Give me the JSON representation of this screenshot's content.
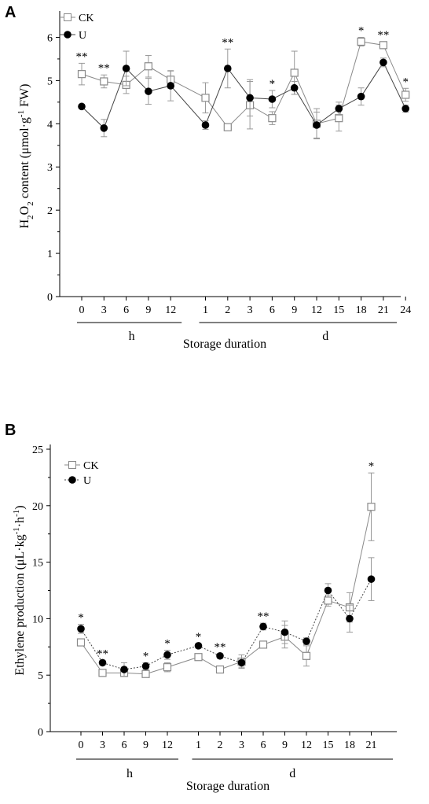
{
  "chart_data": [
    {
      "panel": "A",
      "type": "line",
      "ylabel_parts": [
        "H",
        "2",
        "O",
        "2",
        " content (μmol·g",
        "-1",
        " FW)"
      ],
      "xlabel": "Storage duration",
      "group_labels": [
        "h",
        "d"
      ],
      "categories": [
        "0",
        "3",
        "6",
        "9",
        "12",
        "1",
        "2",
        "3",
        "6",
        "9",
        "12",
        "15",
        "18",
        "21",
        "24"
      ],
      "ylim": [
        0,
        6.5
      ],
      "yticks": [
        0,
        1,
        2,
        3,
        4,
        5,
        6
      ],
      "series": [
        {
          "name": "CK",
          "marker": "square",
          "values": [
            5.15,
            4.98,
            4.9,
            5.33,
            5.02,
            4.6,
            3.92,
            4.43,
            4.13,
            5.18,
            4.0,
            4.13,
            5.9,
            5.82,
            4.67
          ],
          "errors": [
            0.25,
            0.15,
            0.2,
            0.25,
            0.2,
            0.35,
            0.05,
            0.55,
            0.15,
            0.5,
            0.35,
            0.3,
            0.1,
            0.08,
            0.15
          ]
        },
        {
          "name": "U",
          "marker": "circle",
          "values": [
            4.4,
            3.9,
            5.28,
            4.75,
            4.88,
            3.97,
            5.28,
            4.6,
            4.57,
            4.83,
            3.97,
            4.35,
            4.63,
            5.42,
            4.35
          ],
          "errors": [
            0.05,
            0.2,
            0.4,
            0.3,
            0.35,
            0.1,
            0.45,
            0.42,
            0.2,
            0.15,
            0.3,
            0.15,
            0.2,
            0.1,
            0.08
          ]
        }
      ],
      "significance": [
        "**",
        "**",
        "",
        "",
        "",
        "",
        "**",
        "",
        "*",
        "",
        "",
        "",
        "*",
        "**",
        "*"
      ]
    },
    {
      "panel": "B",
      "type": "line",
      "ylabel_parts": [
        "Ethylene production (μL·kg",
        "-1",
        "·h",
        "-1",
        ")"
      ],
      "xlabel": "Storage duration",
      "group_labels": [
        "h",
        "d"
      ],
      "categories": [
        "0",
        "3",
        "6",
        "9",
        "12",
        "1",
        "2",
        "3",
        "6",
        "9",
        "12",
        "15",
        "18",
        "21"
      ],
      "ylim": [
        0,
        25
      ],
      "yticks": [
        0,
        5,
        10,
        15,
        20,
        25
      ],
      "series": [
        {
          "name": "CK",
          "marker": "square",
          "values": [
            7.9,
            5.2,
            5.2,
            5.1,
            5.7,
            6.6,
            5.5,
            6.2,
            7.7,
            8.4,
            6.7,
            11.6,
            11.0,
            19.9
          ],
          "errors": [
            0.3,
            0.2,
            0.3,
            0.2,
            0.4,
            0.3,
            0.2,
            0.6,
            0.3,
            1.0,
            0.9,
            0.5,
            1.3,
            3.0
          ],
          "dash": "solid"
        },
        {
          "name": "U",
          "marker": "circle",
          "values": [
            9.1,
            6.1,
            5.5,
            5.8,
            6.8,
            7.6,
            6.7,
            6.1,
            9.3,
            8.8,
            8.0,
            12.5,
            10.0,
            13.5
          ],
          "errors": [
            0.4,
            0.2,
            0.6,
            0.3,
            0.4,
            0.2,
            0.2,
            0.4,
            0.3,
            1.0,
            0.3,
            0.6,
            1.2,
            1.9
          ],
          "dash": "dotted"
        }
      ],
      "significance": [
        "*",
        "**",
        "",
        "*",
        "*",
        "*",
        "**",
        "",
        "**",
        "",
        "",
        "",
        "",
        "*"
      ]
    }
  ],
  "colors": {
    "ck_line": "#8a8a8a",
    "ck_fill": "#ffffff",
    "u_fill": "#000000",
    "u_line": "#444444",
    "error_bar": "#999999",
    "axis": "#000000"
  }
}
